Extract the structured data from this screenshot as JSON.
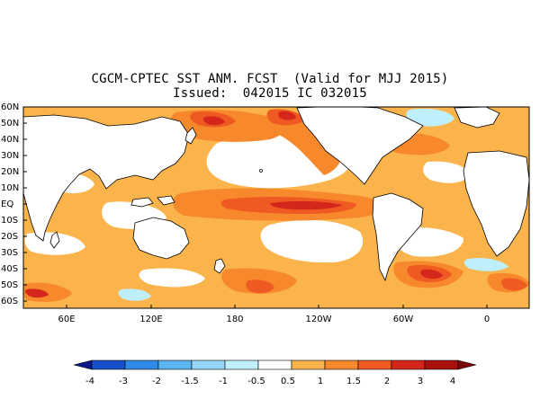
{
  "title": {
    "line1": "CGCM-CPTEC SST ANM. FCST  (Valid for MJJ 2015)",
    "line2": "Issued:  042015 IC 032015"
  },
  "map": {
    "lat_labels": [
      "60N",
      "50N",
      "40N",
      "30N",
      "20N",
      "10N",
      "EQ",
      "10S",
      "20S",
      "30S",
      "40S",
      "50S",
      "60S"
    ],
    "lon_labels": [
      "60E",
      "120E",
      "180",
      "120W",
      "60W",
      "0"
    ],
    "colors": {
      "land": "#ffffff",
      "ocean_default": "#ffffff",
      "coast": "#000000"
    }
  },
  "colorbar": {
    "labels": [
      "-4",
      "-3",
      "-2",
      "-1.5",
      "-1",
      "-0.5",
      "0.5",
      "1",
      "1.5",
      "2",
      "3",
      "4"
    ],
    "colors": [
      "#0a1a8c",
      "#1550c8",
      "#2f8ae6",
      "#5cb4f2",
      "#96d6f8",
      "#bfeefc",
      "#ffffff",
      "#fbb44c",
      "#f7892c",
      "#ef5a22",
      "#d4261a",
      "#a8100e",
      "#7a0808"
    ]
  }
}
